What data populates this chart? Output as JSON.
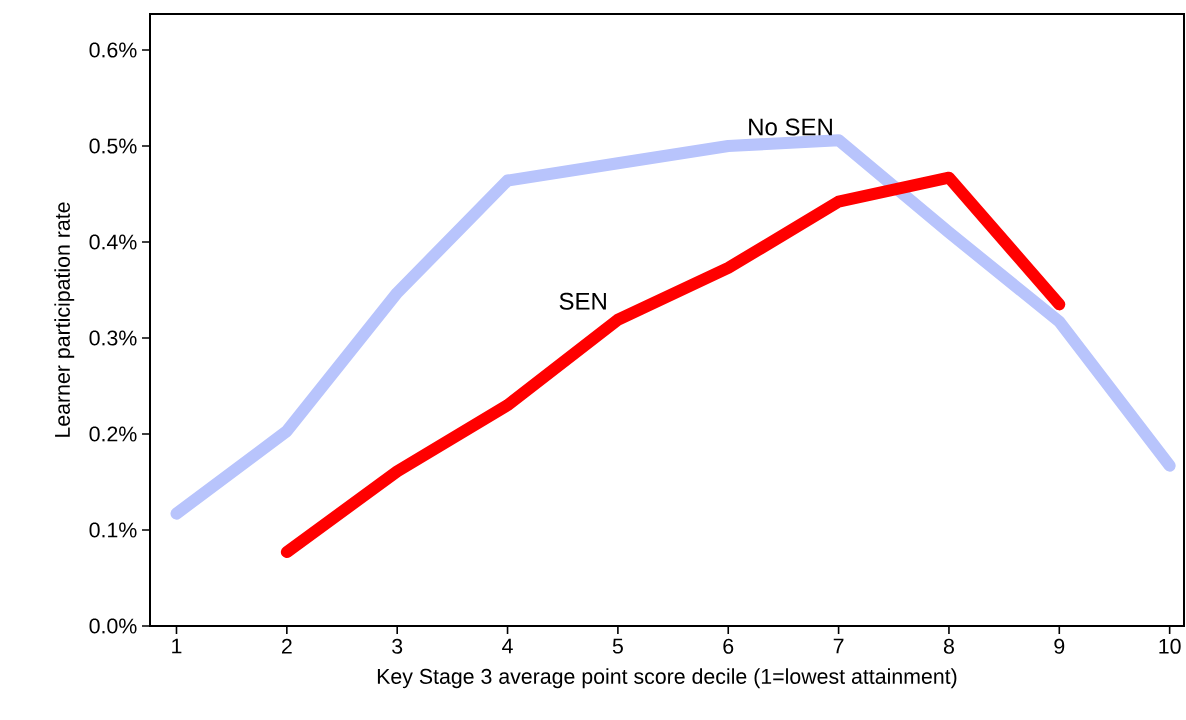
{
  "chart_data": {
    "type": "line",
    "xlabel": "Key Stage 3 average point score decile (1=lowest attainment)",
    "ylabel": "Learner participation rate",
    "xlim": [
      0.76,
      10.13
    ],
    "ylim": [
      0,
      0.6375
    ],
    "xticks": [
      1,
      2,
      3,
      4,
      5,
      6,
      7,
      8,
      9,
      10
    ],
    "yticks": [
      {
        "value": 0,
        "label": "0.0%"
      },
      {
        "value": 0.1,
        "label": "0.1%"
      },
      {
        "value": 0.2,
        "label": "0.2%"
      },
      {
        "value": 0.3,
        "label": "0.3%"
      },
      {
        "value": 0.4,
        "label": "0.4%"
      },
      {
        "value": 0.5,
        "label": "0.5%"
      },
      {
        "value": 0.6,
        "label": "0.6%"
      }
    ],
    "series": [
      {
        "name": "No SEN",
        "color": "#b8c4fc",
        "x": [
          1,
          2,
          3,
          4,
          5,
          6,
          7,
          8,
          9,
          10
        ],
        "values": [
          0.117,
          0.203,
          0.347,
          0.464,
          0.482,
          0.5,
          0.506,
          0.41,
          0.317,
          0.167
        ]
      },
      {
        "name": "SEN",
        "color": "#ff0000",
        "x": [
          2,
          3,
          4,
          5,
          6,
          7,
          8,
          9
        ],
        "values": [
          0.077,
          0.161,
          0.23,
          0.319,
          0.373,
          0.442,
          0.467,
          0.335
        ]
      }
    ],
    "grid": false,
    "legend": false,
    "marker": "none",
    "line_style": "solid"
  }
}
